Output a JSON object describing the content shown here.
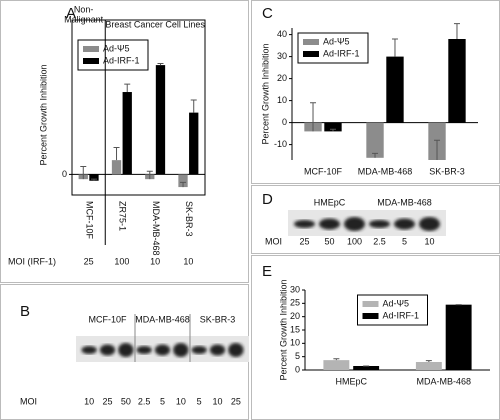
{
  "chart_data": [
    {
      "type": "bar",
      "panel": "A",
      "ylabel": "Percent Growth Inhibition",
      "group_labels": [
        [
          "Non-",
          "Malignant"
        ],
        [
          "Breast Cancer Cell Lines"
        ]
      ],
      "categories": [
        "MCF-10F",
        "ZR75-1",
        "MDA-MB-468",
        "SK-BR-3"
      ],
      "series": [
        {
          "name": "Ad-Ψ5",
          "color": "#8c8c8c",
          "values": [
            -3,
            9,
            -3,
            -8
          ],
          "errors": [
            8,
            8,
            5,
            3
          ]
        },
        {
          "name": "Ad-IRF-1",
          "color": "#000000",
          "values": [
            -4,
            52,
            69,
            39
          ],
          "errors": [
            1,
            5,
            1,
            8
          ]
        }
      ],
      "ylim": [
        -13,
        88
      ],
      "yticks": [
        0
      ],
      "legend": "upper left",
      "moi_label": "MOI (IRF-1)",
      "moi": [
        25,
        100,
        10,
        10
      ]
    },
    {
      "type": "bar",
      "panel": "C",
      "ylabel": "Percent Growth Inhibition",
      "categories": [
        "MCF-10F",
        "MDA-MB-468",
        "SK-BR-3"
      ],
      "series": [
        {
          "name": "Ad-Ψ5",
          "color": "#8c8c8c",
          "values": [
            -4,
            -16,
            -17
          ],
          "errors": [
            13,
            2,
            9
          ]
        },
        {
          "name": "Ad-IRF-1",
          "color": "#000000",
          "values": [
            -4,
            30,
            38
          ],
          "errors": [
            1,
            8,
            7
          ]
        }
      ],
      "ylim": [
        -17,
        43
      ],
      "yticks": [
        -10,
        0,
        10,
        20,
        30,
        40
      ],
      "legend": "upper left"
    },
    {
      "type": "bar",
      "panel": "E",
      "ylabel": "Percent Growth Inhibition",
      "categories": [
        "HMEpC",
        "MDA-MB-468"
      ],
      "series": [
        {
          "name": "Ad-Ψ5",
          "color": "#b4b4b4",
          "values": [
            3.7,
            3
          ],
          "errors": [
            0.5,
            0.5
          ]
        },
        {
          "name": "Ad-IRF-1",
          "color": "#000000",
          "values": [
            1.5,
            24.5
          ],
          "errors": [
            0,
            0
          ]
        }
      ],
      "ylim": [
        0,
        30
      ],
      "yticks": [
        0,
        5,
        10,
        15,
        20,
        25,
        30
      ],
      "legend": "upper center"
    }
  ],
  "blots": [
    {
      "panel": "B",
      "groups": [
        "MCF-10F",
        "MDA-MB-468",
        "SK-BR-3"
      ],
      "moi_label": "MOI",
      "moi": [
        10,
        25,
        50,
        2.5,
        5,
        10,
        5,
        10,
        25
      ]
    },
    {
      "panel": "D",
      "groups": [
        "HMEpC",
        "MDA-MB-468"
      ],
      "moi_label": "MOI",
      "moi": [
        25,
        50,
        100,
        2.5,
        5,
        10
      ]
    }
  ]
}
